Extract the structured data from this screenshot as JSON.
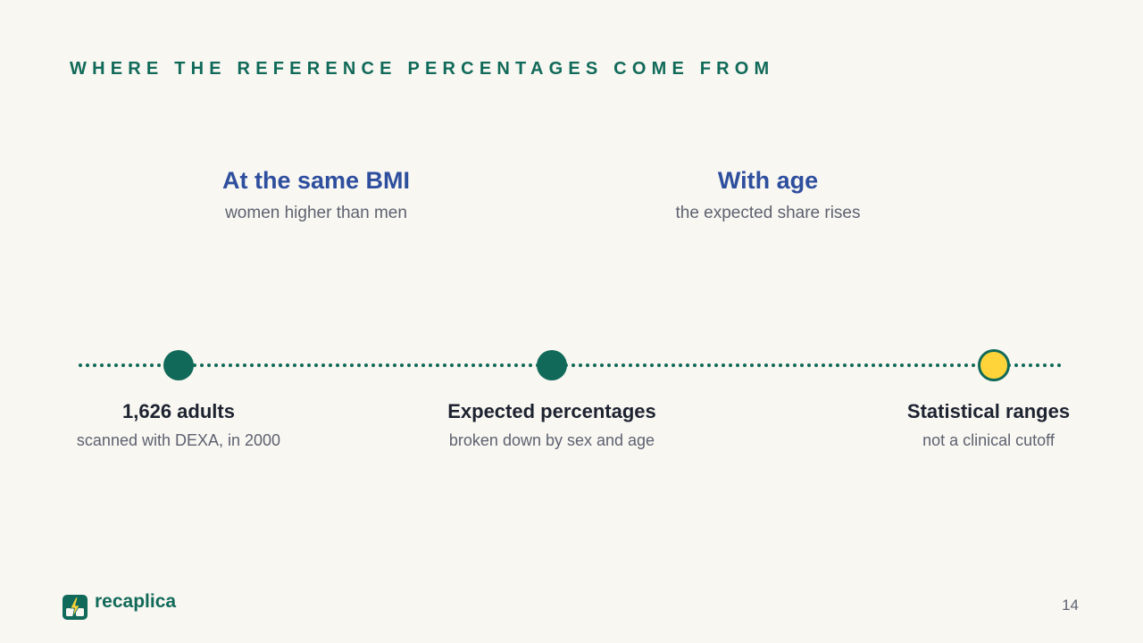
{
  "slide": {
    "eyebrow": "WHERE THE REFERENCE PERCENTAGES COME FROM",
    "callouts": [
      {
        "title": "At the same BMI",
        "subtitle": "women higher than men"
      },
      {
        "title": "With age",
        "subtitle": "the expected share rises"
      }
    ],
    "timeline": {
      "nodes": [
        {
          "title": "1,626 adults",
          "subtitle": "scanned with DEXA, in 2000",
          "state": "reached"
        },
        {
          "title": "Expected percentages",
          "subtitle": "broken down by sex and age",
          "state": "reached"
        },
        {
          "title": "Statistical ranges",
          "subtitle": "not a clinical cutoff",
          "state": "highlight"
        }
      ]
    },
    "brand": {
      "name": "recaplica",
      "logo_icon": "bolt-book-icon"
    },
    "page_number": "14"
  },
  "colors": {
    "background": "#f8f7f2",
    "accent_green": "#116a59",
    "heading_blue": "#2e4e9e",
    "highlight_yellow": "#ffd43b",
    "text_dark": "#1d2230",
    "text_muted": "#5e6270"
  }
}
